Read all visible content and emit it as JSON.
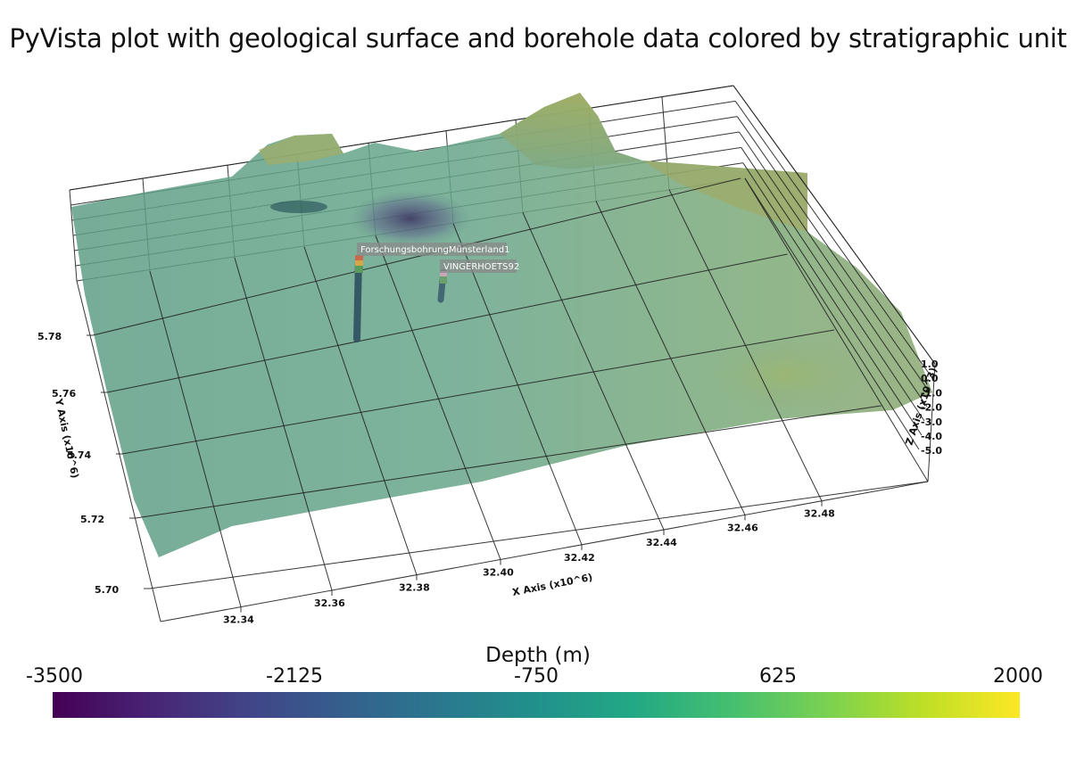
{
  "chart_data": {
    "type": "surface-3d",
    "title": "PyVista plot with geological surface and borehole data colored by stratigraphic unit",
    "xlabel": "X Axis (x10^6)",
    "ylabel": "Y Axis (x10^6)",
    "zlabel": "Z Axis (x10^3)",
    "x_ticks": [
      "32.34",
      "32.36",
      "32.38",
      "32.40",
      "32.42",
      "32.44",
      "32.46",
      "32.48"
    ],
    "y_ticks": [
      "5.70",
      "5.72",
      "5.74",
      "5.76",
      "5.78"
    ],
    "z_ticks": [
      "1.0",
      "0.0",
      "-1.0",
      "-2.0",
      "-3.0",
      "-4.0",
      "-5.0"
    ],
    "boreholes": [
      {
        "name": "ForschungsbohrungMünsterland1"
      },
      {
        "name": "VINGERHOETS92"
      }
    ],
    "colorbar": {
      "title": "Depth (m)",
      "ticks": [
        "-3500",
        "-2125",
        "-750",
        "625",
        "2000"
      ],
      "range": [
        -3500,
        2000
      ],
      "colormap": "viridis"
    },
    "grid": true
  }
}
